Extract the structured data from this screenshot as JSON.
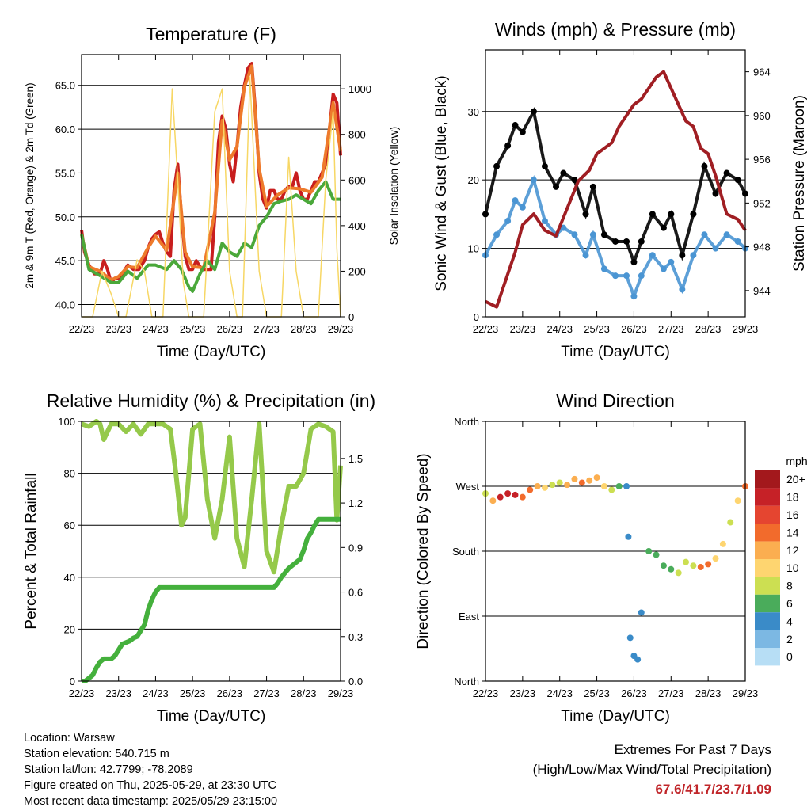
{
  "chart_data": [
    {
      "id": "temperature",
      "type": "line",
      "title": "Temperature (F)",
      "xlabel": "Time (Day/UTC)",
      "ylabel": "2m & 9m T (Red, Orange) & 2m Td (Green)",
      "y2label": "Solar Insolation (Yellow)",
      "x_ticks": [
        "22/23",
        "23/23",
        "24/23",
        "25/23",
        "26/23",
        "27/23",
        "28/23",
        "29/23"
      ],
      "xlim": [
        0,
        7
      ],
      "ylim": [
        38.6,
        68.5
      ],
      "y_ticks": [
        "40.0",
        "45.0",
        "50.0",
        "55.0",
        "60.0",
        "65.0"
      ],
      "y_tick_values": [
        40,
        45,
        50,
        55,
        60,
        65
      ],
      "y2lim": [
        0,
        1150
      ],
      "y2_ticks": [
        "0",
        "200",
        "400",
        "600",
        "800",
        "1000"
      ],
      "y2_tick_values": [
        0,
        200,
        400,
        600,
        800,
        1000
      ],
      "grid": true,
      "series": [
        {
          "name": "2m T",
          "color": "#c81e1e",
          "x": [
            0,
            0.08,
            0.2,
            0.35,
            0.5,
            0.6,
            0.7,
            0.8,
            0.9,
            1.0,
            1.1,
            1.25,
            1.4,
            1.55,
            1.7,
            1.8,
            1.9,
            2.0,
            2.1,
            2.2,
            2.3,
            2.4,
            2.5,
            2.6,
            2.7,
            2.8,
            2.9,
            3.0,
            3.1,
            3.25,
            3.4,
            3.5,
            3.6,
            3.7,
            3.8,
            3.9,
            4.0,
            4.1,
            4.2,
            4.3,
            4.4,
            4.5,
            4.6,
            4.7,
            4.8,
            4.9,
            5.0,
            5.1,
            5.2,
            5.3,
            5.4,
            5.5,
            5.6,
            5.7,
            5.8,
            5.9,
            6.0,
            6.1,
            6.2,
            6.3,
            6.4,
            6.5,
            6.6,
            6.7,
            6.8,
            6.9,
            7.0
          ],
          "y": [
            48.5,
            46,
            44.5,
            43.5,
            43.5,
            45,
            44,
            42.5,
            43,
            43,
            43.5,
            44.5,
            44,
            44,
            45,
            46.5,
            47.5,
            48,
            48.3,
            47,
            46,
            45.5,
            53,
            56,
            50,
            45.5,
            44,
            44,
            45,
            44,
            44,
            44,
            50,
            58.5,
            61.5,
            60,
            56,
            54,
            58,
            62.5,
            65,
            67,
            67.5,
            62,
            55,
            52,
            51,
            53,
            53,
            52,
            52,
            53,
            53.5,
            53.5,
            55,
            53,
            52,
            52,
            53,
            54,
            54,
            55,
            56,
            60,
            64,
            63,
            57
          ]
        },
        {
          "name": "9m T",
          "color": "#ee7a2b",
          "x": [
            0,
            0.2,
            0.5,
            0.8,
            1.0,
            1.25,
            1.5,
            1.8,
            2.0,
            2.3,
            2.5,
            2.6,
            2.8,
            3.0,
            3.3,
            3.6,
            3.8,
            4.0,
            4.2,
            4.4,
            4.6,
            4.8,
            5.0,
            5.3,
            5.6,
            5.9,
            6.2,
            6.5,
            6.8,
            7.0
          ],
          "y": [
            48,
            44.3,
            43.8,
            42.8,
            43.2,
            44.3,
            44.2,
            46.5,
            47.8,
            46.2,
            52,
            55,
            46,
            44.3,
            44.2,
            50.5,
            61,
            56.5,
            58,
            64.8,
            67.2,
            55.5,
            51.2,
            52.5,
            53.3,
            53.2,
            52.8,
            54.5,
            63,
            57.5
          ]
        },
        {
          "name": "2m Td",
          "color": "#4aa83a",
          "x": [
            0,
            0.2,
            0.5,
            0.8,
            1.0,
            1.25,
            1.5,
            1.8,
            2.0,
            2.3,
            2.5,
            2.7,
            2.9,
            3.0,
            3.2,
            3.4,
            3.6,
            3.8,
            4.0,
            4.2,
            4.4,
            4.6,
            4.8,
            5.0,
            5.2,
            5.4,
            5.6,
            5.8,
            6.0,
            6.2,
            6.4,
            6.6,
            6.8,
            7.0
          ],
          "y": [
            48,
            44,
            43.3,
            42.5,
            42.5,
            43.8,
            43,
            44.5,
            44.5,
            44,
            45,
            44,
            42,
            41.5,
            43.5,
            45,
            44,
            47,
            46,
            45.5,
            47,
            46.5,
            49,
            50,
            51.5,
            51.8,
            52,
            52.5,
            52,
            51.5,
            53,
            54,
            52,
            52
          ]
        },
        {
          "name": "Solar Insolation",
          "axis": "y2",
          "color": "#f7d765",
          "x": [
            0,
            0.3,
            0.55,
            0.8,
            1.0,
            1.2,
            1.5,
            1.7,
            1.9,
            2.0,
            2.2,
            2.45,
            2.6,
            2.75,
            2.9,
            3.1,
            3.3,
            3.6,
            3.8,
            4.0,
            4.2,
            4.35,
            4.55,
            4.8,
            5.0,
            5.2,
            5.4,
            5.6,
            5.8,
            6.0,
            6.2,
            6.4,
            6.6,
            6.8,
            6.9,
            7.0
          ],
          "y": [
            0,
            0,
            200,
            100,
            0,
            0,
            250,
            200,
            0,
            0,
            0,
            1000,
            600,
            150,
            0,
            0,
            0,
            900,
            1000,
            200,
            0,
            0,
            1050,
            200,
            0,
            0,
            0,
            700,
            200,
            0,
            0,
            0,
            600,
            900,
            300,
            0
          ]
        }
      ]
    },
    {
      "id": "winds",
      "type": "scatter",
      "title": "Winds (mph) & Pressure (mb)",
      "xlabel": "Time (Day/UTC)",
      "ylabel": "Sonic Wind & Gust (Blue, Black)",
      "y2label": "Station Pressure (Maroon)",
      "x_ticks": [
        "22/23",
        "23/23",
        "24/23",
        "25/23",
        "26/23",
        "27/23",
        "28/23",
        "29/23"
      ],
      "xlim": [
        0,
        7
      ],
      "ylim": [
        0,
        39
      ],
      "y_ticks": [
        "0",
        "10",
        "20",
        "30"
      ],
      "y_tick_values": [
        0,
        10,
        20,
        30
      ],
      "y2lim": [
        941.6,
        966
      ],
      "y2_ticks": [
        "944",
        "948",
        "952",
        "956",
        "960",
        "964"
      ],
      "y2_tick_values": [
        944,
        948,
        952,
        956,
        960,
        964
      ],
      "grid": true,
      "series": [
        {
          "name": "Sonic Wind",
          "color": "#4a95d3",
          "x": [
            0,
            0.3,
            0.6,
            0.8,
            1.0,
            1.3,
            1.6,
            1.9,
            2.1,
            2.4,
            2.7,
            2.9,
            3.2,
            3.5,
            3.8,
            4.0,
            4.2,
            4.5,
            4.8,
            5.0,
            5.3,
            5.6,
            5.9,
            6.2,
            6.5,
            6.8,
            7.0
          ],
          "y": [
            9,
            12,
            14,
            17,
            16,
            20,
            14,
            12,
            13,
            12,
            9,
            12,
            7,
            6,
            6,
            3,
            6,
            9,
            7,
            8,
            4,
            9,
            12,
            10,
            12,
            11,
            10
          ]
        },
        {
          "name": "Gust",
          "color": "#000000",
          "x": [
            0,
            0.3,
            0.6,
            0.8,
            1.0,
            1.3,
            1.6,
            1.9,
            2.1,
            2.4,
            2.7,
            2.9,
            3.2,
            3.5,
            3.8,
            4.0,
            4.2,
            4.5,
            4.8,
            5.0,
            5.3,
            5.6,
            5.9,
            6.2,
            6.5,
            6.8,
            7.0
          ],
          "y": [
            15,
            22,
            25,
            28,
            27,
            30,
            22,
            19,
            21,
            20,
            15,
            19,
            12,
            11,
            11,
            8,
            11,
            15,
            13,
            15,
            9,
            15,
            22,
            18,
            21,
            20,
            18
          ]
        },
        {
          "name": "Station Pressure",
          "axis": "y2",
          "color": "#a01e23",
          "x": [
            0,
            0.3,
            0.5,
            0.8,
            1.0,
            1.3,
            1.6,
            1.9,
            2.2,
            2.5,
            2.8,
            3.0,
            3.2,
            3.4,
            3.6,
            3.8,
            4.0,
            4.2,
            4.4,
            4.6,
            4.8,
            5.0,
            5.2,
            5.4,
            5.6,
            5.8,
            6.0,
            6.2,
            6.5,
            6.8,
            7.0
          ],
          "y": [
            943,
            942.5,
            944.5,
            947.5,
            950,
            951,
            949.5,
            949,
            951.5,
            954,
            955,
            956.5,
            957,
            957.5,
            959,
            960,
            961,
            961.5,
            962.5,
            963.5,
            964,
            962.5,
            961,
            959.5,
            959,
            957,
            956.5,
            954.5,
            951,
            950.5,
            949.5
          ]
        }
      ]
    },
    {
      "id": "humidity",
      "type": "line",
      "title": "Relative Humidity (%) & Precipitation (in)",
      "xlabel": "Time (Day/UTC)",
      "ylabel": "Percent & Total Rainfall",
      "x_ticks": [
        "22/23",
        "23/23",
        "24/23",
        "25/23",
        "26/23",
        "27/23",
        "28/23",
        "29/23"
      ],
      "xlim": [
        0,
        7
      ],
      "ylim": [
        0,
        100
      ],
      "y_ticks": [
        "0",
        "20",
        "40",
        "60",
        "80",
        "100"
      ],
      "y_tick_values": [
        0,
        20,
        40,
        60,
        80,
        100
      ],
      "y2lim": [
        0,
        1.75
      ],
      "y2_ticks": [
        "0.0",
        "0.3",
        "0.6",
        "0.9",
        "1.2",
        "1.5"
      ],
      "y2_tick_values": [
        0,
        0.3,
        0.6,
        0.9,
        1.2,
        1.5
      ],
      "grid": true,
      "series": [
        {
          "name": "Relative Humidity",
          "color": "#95c94a",
          "x": [
            0,
            0.2,
            0.4,
            0.5,
            0.6,
            0.8,
            1.0,
            1.2,
            1.4,
            1.6,
            1.8,
            2.0,
            2.2,
            2.4,
            2.55,
            2.7,
            2.8,
            3.0,
            3.2,
            3.4,
            3.6,
            3.8,
            4.0,
            4.2,
            4.4,
            4.6,
            4.8,
            5.0,
            5.2,
            5.4,
            5.6,
            5.8,
            6.0,
            6.2,
            6.4,
            6.6,
            6.8,
            6.9,
            7.0
          ],
          "y": [
            99,
            98,
            100,
            99,
            93,
            99,
            99,
            96,
            99,
            95,
            99,
            99,
            99,
            97,
            80,
            60,
            63,
            97,
            99,
            70,
            55,
            70,
            94,
            55,
            44,
            70,
            99,
            50,
            42,
            60,
            75,
            75,
            80,
            97,
            99,
            98,
            96,
            62,
            83
          ]
        },
        {
          "name": "Total Rainfall",
          "axis": "y2",
          "color": "#44b03c",
          "x": [
            0,
            0.1,
            0.2,
            0.3,
            0.4,
            0.5,
            0.6,
            0.7,
            0.8,
            0.9,
            1.0,
            1.1,
            1.2,
            1.3,
            1.4,
            1.5,
            1.6,
            1.7,
            1.8,
            1.9,
            2.0,
            2.1,
            2.2,
            2.6,
            3.0,
            3.4,
            3.8,
            4.2,
            4.6,
            5.0,
            5.2,
            5.3,
            5.4,
            5.6,
            5.8,
            5.9,
            6.0,
            6.1,
            6.2,
            6.3,
            6.4,
            6.6,
            6.8,
            7.0
          ],
          "y": [
            0,
            0,
            0.02,
            0.04,
            0.09,
            0.13,
            0.15,
            0.15,
            0.15,
            0.17,
            0.21,
            0.25,
            0.26,
            0.27,
            0.29,
            0.3,
            0.34,
            0.38,
            0.48,
            0.55,
            0.6,
            0.63,
            0.63,
            0.63,
            0.63,
            0.63,
            0.63,
            0.63,
            0.63,
            0.63,
            0.63,
            0.66,
            0.7,
            0.76,
            0.8,
            0.82,
            0.88,
            0.96,
            1.0,
            1.05,
            1.09,
            1.09,
            1.09,
            1.09
          ]
        }
      ]
    },
    {
      "id": "direction",
      "type": "scatter",
      "title": "Wind Direction",
      "xlabel": "Time (Day/UTC)",
      "ylabel": "Direction (Colored By Speed)",
      "x_ticks": [
        "22/23",
        "23/23",
        "24/23",
        "25/23",
        "26/23",
        "27/23",
        "28/23",
        "29/23"
      ],
      "xlim": [
        0,
        7
      ],
      "ylim": [
        0,
        360
      ],
      "y_ticks": [
        "North",
        "East",
        "South",
        "West",
        "North"
      ],
      "y_tick_values": [
        0,
        90,
        180,
        270,
        360
      ],
      "grid": true,
      "series": [
        {
          "name": "Wind Direction",
          "x": [
            0,
            0.2,
            0.4,
            0.6,
            0.8,
            1.0,
            1.2,
            1.4,
            1.6,
            1.8,
            2.0,
            2.2,
            2.4,
            2.6,
            2.8,
            3.0,
            3.2,
            3.4,
            3.6,
            3.8,
            3.85,
            3.9,
            4.0,
            4.1,
            4.2,
            4.4,
            4.6,
            4.8,
            5.0,
            5.2,
            5.4,
            5.6,
            5.8,
            6.0,
            6.2,
            6.4,
            6.6,
            6.8,
            7.0
          ],
          "y": [
            260,
            250,
            255,
            260,
            258,
            255,
            265,
            270,
            268,
            272,
            275,
            272,
            280,
            275,
            278,
            282,
            270,
            265,
            270,
            270,
            200,
            60,
            35,
            30,
            95,
            180,
            175,
            160,
            155,
            150,
            165,
            160,
            158,
            162,
            170,
            190,
            220,
            250,
            270
          ],
          "speed": [
            8,
            12,
            18,
            18,
            18,
            14,
            14,
            12,
            10,
            8,
            8,
            12,
            12,
            14,
            12,
            12,
            10,
            8,
            6,
            4,
            4,
            4,
            4,
            4,
            4,
            6,
            6,
            6,
            6,
            8,
            8,
            8,
            14,
            14,
            10,
            10,
            8,
            10,
            14
          ]
        }
      ],
      "colorbar": {
        "title": "mph",
        "labels": [
          "20+",
          "18",
          "16",
          "14",
          "12",
          "10",
          "8",
          "6",
          "4",
          "2",
          "0"
        ],
        "colors": [
          "#a3181c",
          "#c62127",
          "#e54530",
          "#f26b2c",
          "#fbae50",
          "#fed570",
          "#ccdf52",
          "#4aac5b",
          "#3a8bc8",
          "#7cb8e3",
          "#b7def5"
        ]
      }
    }
  ],
  "station_info": {
    "location": "Location: Warsaw",
    "elevation": "Station elevation: 540.715 m",
    "latlon": "Station lat/lon: 42.7799; -78.2089",
    "created": "Figure created on Thu, 2025-05-29, at 23:30 UTC",
    "timestamp": "Most recent data timestamp: 2025/05/29 23:15:00"
  },
  "extremes": {
    "title": "Extremes For Past 7 Days",
    "subtitle": "(High/Low/Max Wind/Total Precipitation)",
    "values": "67.6/41.7/23.7/1.09"
  }
}
